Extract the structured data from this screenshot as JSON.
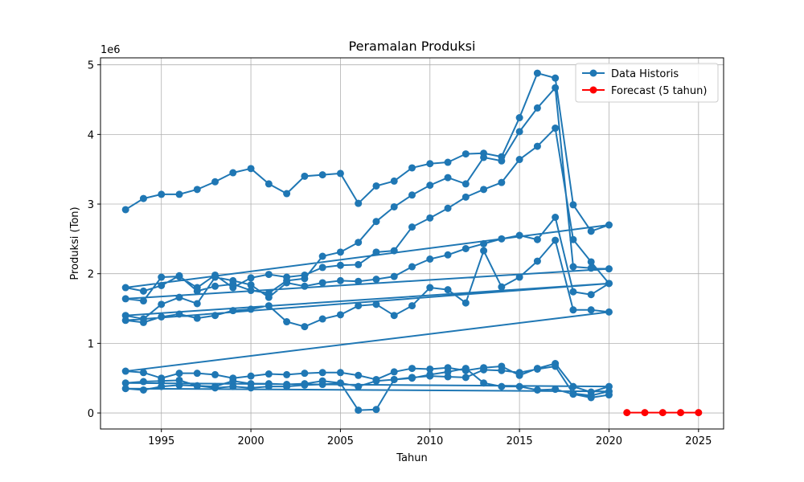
{
  "chart_data": {
    "type": "line",
    "title": "Peramalan Produksi",
    "xlabel": "Tahun",
    "ylabel": "Produksi (Ton)",
    "y_scale_note": "1e6",
    "xlim": [
      1991.6,
      2026.4
    ],
    "ylim": [
      -230000,
      5100000
    ],
    "x_ticks": [
      1995,
      2000,
      2005,
      2010,
      2015,
      2020,
      2025
    ],
    "y_ticks": [
      0,
      1,
      2,
      3,
      4,
      5
    ],
    "grid": true,
    "legend_position": "top-right",
    "colors": {
      "historis": "#1f77b4",
      "forecast": "#ff0000"
    },
    "series": [
      {
        "name": "Data Historis",
        "color": "#1f77b4",
        "x": [
          1993,
          1994,
          1995,
          1996,
          1997,
          1998,
          1999,
          2000,
          2001,
          2002,
          2003,
          2004,
          2005,
          2006,
          2007,
          2008,
          2009,
          2010,
          2011,
          2012,
          2013,
          2014,
          2015,
          2016,
          2017,
          2018,
          2019,
          2020,
          1993,
          1994,
          1995,
          1996,
          1997,
          1998,
          1999,
          2000,
          2001,
          2002,
          2003,
          2004,
          2005,
          2006,
          2007,
          2008,
          2009,
          2010,
          2011,
          2012,
          2013,
          2014,
          2015,
          2016,
          2017,
          2018,
          2019,
          2020,
          1993,
          1994,
          1995,
          1996,
          1997,
          1998,
          1999,
          2000,
          2001,
          2002,
          2003,
          2004,
          2005,
          2006,
          2007,
          2008,
          2009,
          2010,
          2011,
          2012,
          2013,
          2014,
          2015,
          2016,
          2017,
          2018,
          2019,
          2020,
          1993,
          1994,
          1995,
          1996,
          1997,
          1998,
          1999,
          2000,
          2001,
          2002,
          2003,
          2004,
          2005,
          2006,
          2007,
          2008,
          2009,
          2010,
          2011,
          2012,
          2013,
          2014,
          2015,
          2016,
          2017,
          2018,
          2019,
          2020,
          1993,
          1994,
          1995,
          1996,
          1997,
          1998,
          1999,
          2000,
          2001,
          2002,
          2003,
          2004,
          2005,
          2006,
          2007,
          2008,
          2009,
          2010,
          2011,
          2012,
          2013,
          2014,
          2015,
          2016,
          2017,
          2018,
          2019,
          2020,
          1993,
          1994,
          1995,
          1996,
          1997,
          1998,
          1999,
          2000,
          2001,
          2002,
          2003,
          2004,
          2005,
          2006,
          2007,
          2008,
          2009,
          2010,
          2011,
          2012,
          2013,
          2014,
          2015,
          2016,
          2017,
          2018,
          2019,
          2020,
          1993,
          1994,
          1995,
          1996,
          1997,
          1998,
          1999,
          2000,
          2001,
          2002,
          2003,
          2004,
          2005,
          2006,
          2007,
          2008,
          2009,
          2010,
          2011,
          2012,
          2013,
          2014,
          2015,
          2016,
          2017,
          2018,
          2019,
          2020,
          1993,
          1994,
          1995,
          1996,
          1997,
          1998,
          1999,
          2000,
          2001,
          2002,
          2003,
          2004,
          2005,
          2006,
          2007,
          2008,
          2009,
          2010,
          2011,
          2012,
          2013,
          2014,
          2015,
          2016,
          2017,
          2018,
          2019,
          2020
        ],
        "values": [
          2920000,
          3080000,
          3140000,
          3140000,
          3210000,
          3320000,
          3450000,
          3510000,
          3290000,
          3150000,
          3400000,
          3420000,
          3440000,
          3010000,
          3260000,
          3330000,
          3520000,
          3580000,
          3600000,
          3720000,
          3730000,
          3680000,
          4240000,
          4880000,
          4810000,
          2990000,
          2610000,
          2700000,
          1800000,
          1750000,
          1830000,
          1970000,
          1750000,
          1820000,
          1850000,
          1760000,
          1720000,
          1900000,
          1930000,
          2250000,
          2310000,
          2450000,
          2750000,
          2960000,
          3130000,
          3270000,
          3380000,
          3290000,
          3670000,
          3620000,
          4040000,
          4380000,
          4670000,
          2100000,
          2080000,
          2070000,
          1640000,
          1610000,
          1950000,
          1960000,
          1800000,
          1980000,
          1800000,
          1940000,
          1990000,
          1950000,
          1980000,
          2090000,
          2120000,
          2130000,
          2310000,
          2330000,
          2670000,
          2800000,
          2940000,
          3100000,
          3210000,
          3310000,
          3640000,
          3830000,
          4090000,
          2490000,
          2170000,
          1860000,
          1400000,
          1350000,
          1560000,
          1660000,
          1570000,
          1950000,
          1900000,
          1840000,
          1660000,
          1870000,
          1820000,
          1870000,
          1900000,
          1890000,
          1920000,
          1960000,
          2100000,
          2210000,
          2270000,
          2360000,
          2430000,
          2500000,
          2550000,
          2490000,
          2810000,
          1740000,
          1700000,
          1860000,
          1330000,
          1300000,
          1380000,
          1420000,
          1360000,
          1400000,
          1470000,
          1490000,
          1540000,
          1310000,
          1240000,
          1350000,
          1410000,
          1540000,
          1560000,
          1400000,
          1540000,
          1800000,
          1770000,
          1580000,
          2330000,
          1810000,
          1950000,
          2180000,
          2480000,
          1480000,
          1480000,
          1450000,
          600000,
          580000,
          500000,
          570000,
          570000,
          550000,
          500000,
          530000,
          560000,
          550000,
          570000,
          580000,
          580000,
          540000,
          480000,
          590000,
          640000,
          630000,
          650000,
          610000,
          650000,
          670000,
          540000,
          640000,
          710000,
          380000,
          300000,
          380000,
          430000,
          450000,
          460000,
          470000,
          390000,
          380000,
          460000,
          420000,
          420000,
          410000,
          420000,
          460000,
          430000,
          40000,
          50000,
          480000,
          510000,
          530000,
          520000,
          510000,
          620000,
          610000,
          580000,
          630000,
          670000,
          280000,
          250000,
          310000,
          350000,
          330000,
          380000,
          400000,
          390000,
          360000,
          380000,
          360000,
          380000,
          380000,
          400000,
          410000,
          430000,
          380000,
          460000,
          480000,
          500000,
          550000,
          590000,
          640000,
          430000,
          380000,
          380000,
          330000,
          340000,
          270000,
          220000,
          260000
        ]
      },
      {
        "name": "Forecast (5 tahun)",
        "color": "#ff0000",
        "x": [
          2021,
          2022,
          2023,
          2024,
          2025
        ],
        "values": [
          5000,
          5000,
          5000,
          5000,
          5000
        ]
      }
    ]
  }
}
